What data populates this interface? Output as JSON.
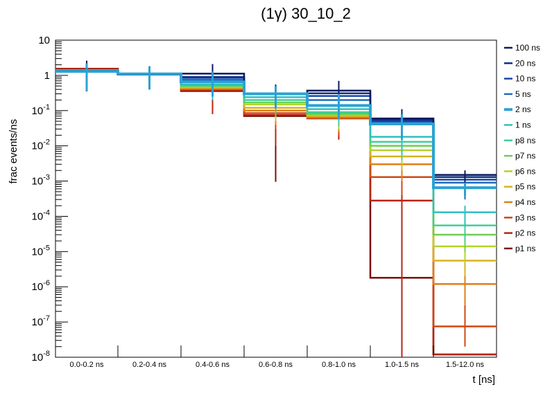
{
  "chart_data": {
    "type": "step",
    "title": "(1γ) 30_10_2",
    "xlabel": "t [ns]",
    "ylabel": "frac events/ns",
    "yscale": "log",
    "ylim": [
      1e-08,
      10
    ],
    "categories": [
      "0.0-0.2 ns",
      "0.2-0.4 ns",
      "0.4-0.6 ns",
      "0.6-0.8 ns",
      "0.8-1.0 ns",
      "1.0-1.5 ns",
      "1.5-12.0 ns"
    ],
    "y_ticks": [
      {
        "base": "10",
        "exp": "-8",
        "value": 1e-08
      },
      {
        "base": "10",
        "exp": "-7",
        "value": 1e-07
      },
      {
        "base": "10",
        "exp": "-6",
        "value": 1e-06
      },
      {
        "base": "10",
        "exp": "-5",
        "value": 1e-05
      },
      {
        "base": "10",
        "exp": "-4",
        "value": 0.0001
      },
      {
        "base": "10",
        "exp": "-3",
        "value": 0.001
      },
      {
        "base": "10",
        "exp": "-2",
        "value": 0.01
      },
      {
        "base": "10",
        "exp": "-1",
        "value": 0.1
      },
      {
        "base": "1",
        "exp": "",
        "value": 1
      },
      {
        "base": "10",
        "exp": "",
        "value": 10
      }
    ],
    "series": [
      {
        "name": "100 ns",
        "color": "#0b1a5c",
        "values": [
          1.35,
          1.05,
          1.12,
          0.31,
          0.37,
          0.06,
          0.0015
        ],
        "errors": [
          [
            0.4,
            2.6
          ],
          [
            0.4,
            1.8
          ],
          [
            0.4,
            2.1
          ],
          [
            0.15,
            0.55
          ],
          [
            0.15,
            0.7
          ],
          [
            0.02,
            0.11
          ],
          [
            0.0004,
            0.002
          ]
        ]
      },
      {
        "name": "20 ns",
        "color": "#0e2f86",
        "values": [
          1.33,
          1.06,
          0.9,
          0.3,
          0.31,
          0.055,
          0.0013
        ],
        "errors": [
          [
            0.4,
            2.4
          ],
          [
            0.4,
            1.8
          ],
          [
            0.3,
            1.7
          ],
          [
            0.12,
            0.5
          ],
          [
            0.12,
            0.55
          ],
          [
            0.02,
            0.1
          ],
          [
            0.0004,
            0.002
          ]
        ]
      },
      {
        "name": "10 ns",
        "color": "#1746a8",
        "values": [
          1.32,
          1.08,
          0.85,
          0.3,
          0.26,
          0.05,
          0.0011
        ],
        "errors": [
          [
            0.4,
            2.4
          ],
          [
            0.4,
            1.8
          ],
          [
            0.3,
            1.6
          ],
          [
            0.12,
            0.5
          ],
          [
            0.1,
            0.5
          ],
          [
            0.02,
            0.09
          ],
          [
            0.0004,
            0.0018
          ]
        ]
      },
      {
        "name": "5 ns",
        "color": "#1f6bbf",
        "values": [
          1.31,
          1.09,
          0.75,
          0.3,
          0.2,
          0.045,
          0.0009
        ],
        "errors": [
          [
            0.4,
            2.4
          ],
          [
            0.4,
            1.8
          ],
          [
            0.3,
            1.5
          ],
          [
            0.12,
            0.5
          ],
          [
            0.08,
            0.4
          ],
          [
            0.018,
            0.085
          ],
          [
            0.0003,
            0.0016
          ]
        ]
      },
      {
        "name": "2 ns",
        "color": "#2aa2d4",
        "thick": true,
        "values": [
          1.3,
          1.1,
          0.65,
          0.3,
          0.14,
          0.042,
          0.00065
        ],
        "errors": [
          [
            0.35,
            2.2
          ],
          [
            0.4,
            1.8
          ],
          [
            0.25,
            1.3
          ],
          [
            0.12,
            0.5
          ],
          [
            0.06,
            0.3
          ],
          [
            0.015,
            0.08
          ],
          [
            0.0004,
            0.0009
          ]
        ]
      },
      {
        "name": "1 ns",
        "color": "#2ebfc0",
        "values": [
          1.3,
          1.1,
          0.55,
          0.24,
          0.11,
          0.018,
          0.00013
        ],
        "errors": [
          [
            0.35,
            2.2
          ],
          [
            0.4,
            1.8
          ],
          [
            0.2,
            1.2
          ],
          [
            0.1,
            0.45
          ],
          [
            0.05,
            0.25
          ],
          [
            0.006,
            0.04
          ],
          [
            5e-05,
            0.0002
          ]
        ]
      },
      {
        "name": "p8 ns",
        "color": "#3ecf98",
        "values": [
          1.3,
          1.1,
          0.52,
          0.2,
          0.09,
          0.013,
          5.5e-05
        ],
        "errors": [
          [
            0.35,
            2.2
          ],
          [
            0.4,
            1.8
          ],
          [
            0.2,
            1.1
          ],
          [
            0.08,
            0.4
          ],
          [
            0.04,
            0.2
          ],
          [
            0.005,
            0.03
          ],
          [
            2e-05,
            0.0001
          ]
        ]
      },
      {
        "name": "p7 ns",
        "color": "#6ccf50",
        "values": [
          1.3,
          1.1,
          0.5,
          0.17,
          0.08,
          0.01,
          3e-05
        ],
        "errors": [
          [
            0.35,
            2.2
          ],
          [
            0.4,
            1.8
          ],
          [
            0.2,
            1.1
          ],
          [
            0.07,
            0.35
          ],
          [
            0.035,
            0.18
          ],
          [
            0.004,
            0.025
          ],
          [
            1e-05,
            6e-05
          ]
        ]
      },
      {
        "name": "p6 ns",
        "color": "#b3d32a",
        "values": [
          1.32,
          1.1,
          0.47,
          0.15,
          0.075,
          0.0075,
          1.4e-05
        ],
        "errors": [
          [
            0.35,
            2.2
          ],
          [
            0.4,
            1.8
          ],
          [
            0.2,
            1.0
          ],
          [
            0.06,
            0.3
          ],
          [
            0.03,
            0.16
          ],
          [
            0.003,
            0.02
          ],
          [
            5e-06,
            3e-05
          ]
        ]
      },
      {
        "name": "p5 ns",
        "color": "#d6b31f",
        "values": [
          1.35,
          1.1,
          0.45,
          0.12,
          0.07,
          0.005,
          5.5e-06
        ],
        "errors": [
          [
            0.4,
            2.3
          ],
          [
            0.4,
            1.8
          ],
          [
            0.2,
            1.0
          ],
          [
            0.05,
            0.28
          ],
          [
            0.03,
            0.15
          ],
          [
            0.002,
            0.015
          ],
          [
            2e-06,
            1.2e-05
          ]
        ]
      },
      {
        "name": "p4 ns",
        "color": "#e07e1a",
        "values": [
          1.4,
          1.1,
          0.42,
          0.1,
          0.065,
          0.003,
          1.2e-06
        ],
        "errors": [
          [
            0.4,
            2.4
          ],
          [
            0.4,
            1.8
          ],
          [
            0.2,
            0.9
          ],
          [
            0.04,
            0.25
          ],
          [
            0.025,
            0.14
          ],
          [
            0.001,
            0.01
          ],
          [
            3e-07,
            4e-06
          ]
        ]
      },
      {
        "name": "p3 ns",
        "color": "#d04712",
        "values": [
          1.45,
          1.1,
          0.4,
          0.085,
          0.06,
          0.0013,
          7.5e-08
        ],
        "errors": [
          [
            0.4,
            2.5
          ],
          [
            0.4,
            1.8
          ],
          [
            0.2,
            0.9
          ],
          [
            0.03,
            0.22
          ],
          [
            0.02,
            0.13
          ],
          [
            0.0004,
            0.006
          ],
          [
            2e-08,
            3e-07
          ]
        ]
      },
      {
        "name": "p2 ns",
        "color": "#b7250e",
        "values": [
          1.5,
          1.1,
          0.38,
          0.075,
          0.085,
          0.00028,
          1.2e-08
        ],
        "errors": [
          [
            0.4,
            2.6
          ],
          [
            0.4,
            1.8
          ],
          [
            0.08,
            0.8
          ],
          [
            0.01,
            0.2
          ],
          [
            0.015,
            0.12
          ],
          [
            1e-08,
            0.003
          ],
          [
            1e-08,
            1e-08
          ]
        ]
      },
      {
        "name": "p1 ns",
        "color": "#7a0d08",
        "values": [
          1.55,
          1.1,
          0.36,
          0.07,
          0.09,
          1.8e-06,
          1.2e-08
        ],
        "errors": [
          [
            0.4,
            2.6
          ],
          [
            0.4,
            1.8
          ],
          [
            0.08,
            0.8
          ],
          [
            0.00095,
            0.2
          ],
          [
            0.02,
            0.12
          ],
          [
            1e-08,
            0.0025
          ],
          [
            1e-08,
            1e-08
          ]
        ]
      }
    ]
  }
}
